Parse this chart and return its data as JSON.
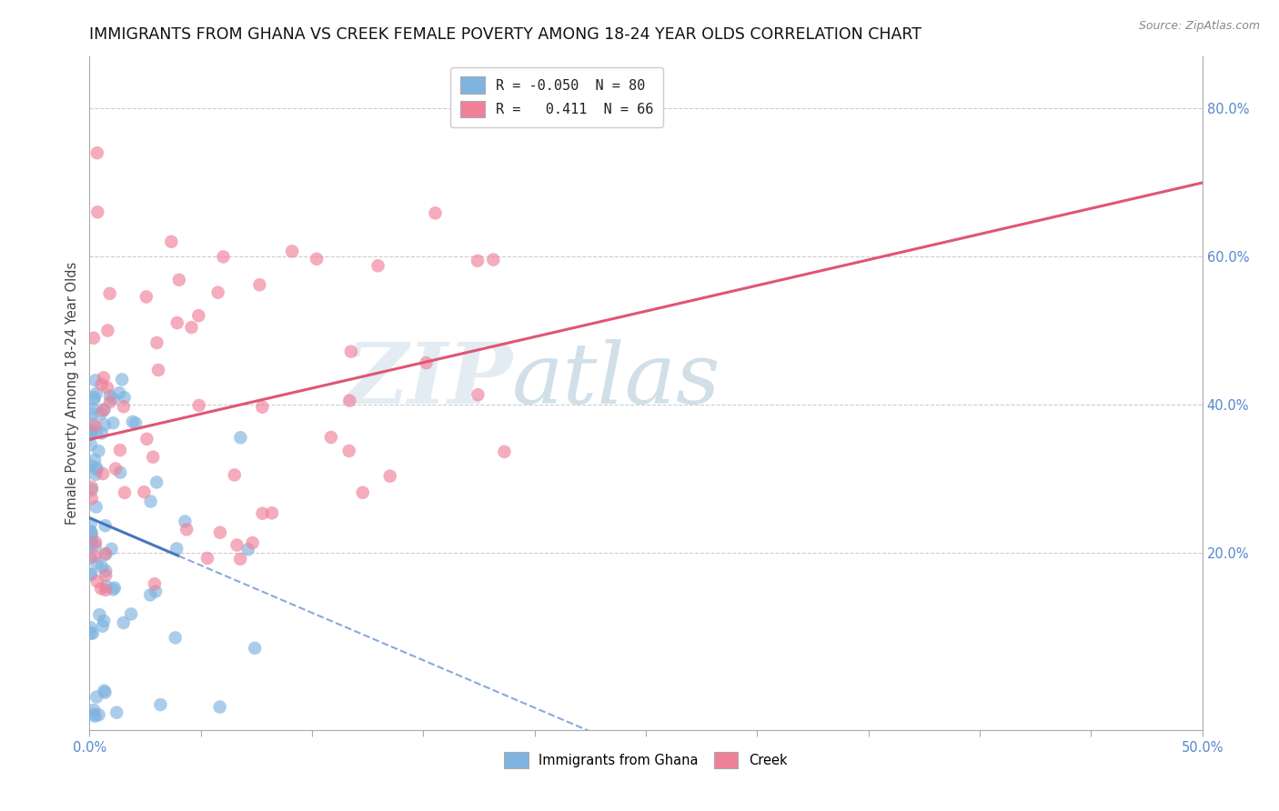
{
  "title": "IMMIGRANTS FROM GHANA VS CREEK FEMALE POVERTY AMONG 18-24 YEAR OLDS CORRELATION CHART",
  "source": "Source: ZipAtlas.com",
  "ylabel": "Female Poverty Among 18-24 Year Olds",
  "xmin": 0.0,
  "xmax": 0.5,
  "ymin": -0.04,
  "ymax": 0.87,
  "ghana_R": -0.05,
  "ghana_N": 80,
  "creek_R": 0.411,
  "creek_N": 66,
  "ghana_color": "#7fb3e0",
  "creek_color": "#f08098",
  "ghana_line_color_solid": "#4477bb",
  "ghana_line_color_dash": "#88aadd",
  "creek_line_color": "#e05575",
  "background_color": "#ffffff",
  "right_yticks": [
    0.2,
    0.4,
    0.6,
    0.8
  ],
  "right_ytick_labels": [
    "20.0%",
    "40.0%",
    "60.0%",
    "80.0%"
  ],
  "grid_color": "#cccccc",
  "title_fontsize": 12.5,
  "axis_fontsize": 10.5,
  "legend_fontsize": 11,
  "watermark_zip_color": "#c8d8e8",
  "watermark_atlas_color": "#a0b8d0"
}
